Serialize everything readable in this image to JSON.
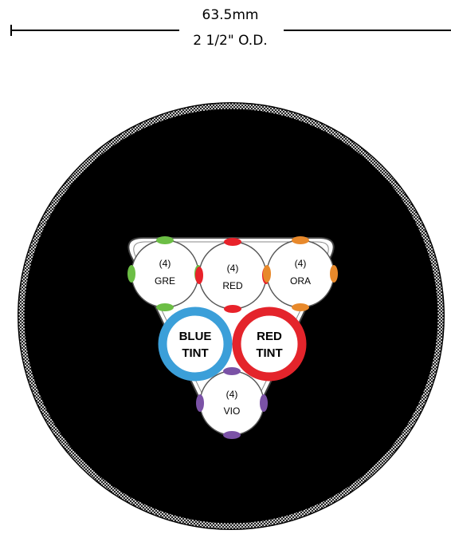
{
  "dimension": {
    "metric": "63.5mm",
    "imperial": "2 1/2\" O.D."
  },
  "colors": {
    "jacket": "#000000",
    "braid": "#ffffff",
    "core_fill": "#ffffff",
    "core_outline": "#555555",
    "green": "#6cbe45",
    "red": "#e8222a",
    "orange": "#e8892b",
    "violet": "#7b52a6",
    "blue_tint": "#3b9fd9",
    "red_tint": "#e4242b"
  },
  "subunits": [
    {
      "id": "gre",
      "count": "(4)",
      "label": "GRE",
      "color": "#6cbe45",
      "icon": "fiber-subunit"
    },
    {
      "id": "red",
      "count": "(4)",
      "label": "RED",
      "color": "#e8222a",
      "icon": "fiber-subunit"
    },
    {
      "id": "ora",
      "count": "(4)",
      "label": "ORA",
      "color": "#e8892b",
      "icon": "fiber-subunit"
    },
    {
      "id": "vio",
      "count": "(4)",
      "label": "VIO",
      "color": "#7b52a6",
      "icon": "fiber-subunit"
    }
  ],
  "tints": [
    {
      "id": "blue",
      "line1": "BLUE",
      "line2": "TINT",
      "color": "#3b9fd9"
    },
    {
      "id": "red",
      "line1": "RED",
      "line2": "TINT",
      "color": "#e4242b"
    }
  ]
}
